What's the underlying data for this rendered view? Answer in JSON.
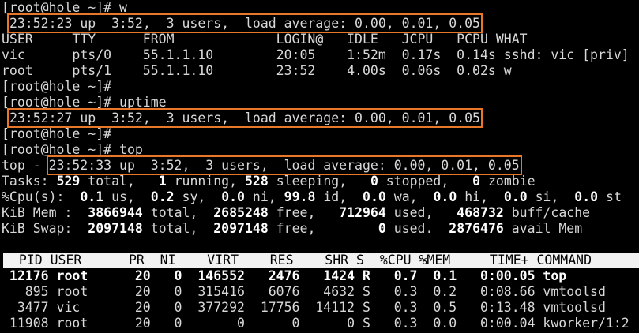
{
  "terminal": {
    "lines": [
      {
        "segments": [
          {
            "text": "[root@hole ~]# w"
          }
        ]
      },
      {
        "segments": [
          {
            "text": " "
          },
          {
            "text": "23:52:23 up  3:52,  3 users,  load average: 0.00, 0.01, 0.05",
            "highlight": true
          }
        ]
      },
      {
        "segments": [
          {
            "text": "USER     TTY      FROM             LOGIN@   IDLE   JCPU   PCPU WHAT"
          }
        ]
      },
      {
        "segments": [
          {
            "text": "vic      pts/0    55.1.1.10        20:05    1:52m  0.17s  0.14s sshd: vic [priv]"
          }
        ]
      },
      {
        "segments": [
          {
            "text": "root     pts/1    55.1.1.10        23:52    4.00s  0.06s  0.02s w"
          }
        ]
      },
      {
        "segments": [
          {
            "text": "[root@hole ~]#"
          }
        ]
      },
      {
        "segments": [
          {
            "text": "[root@hole ~]# uptime"
          }
        ]
      },
      {
        "segments": [
          {
            "text": " "
          },
          {
            "text": "23:52:27 up  3:52,  3 users,  load average: 0.00, 0.01, 0.05",
            "highlight": true
          }
        ]
      },
      {
        "segments": [
          {
            "text": "[root@hole ~]#"
          }
        ]
      },
      {
        "segments": [
          {
            "text": "[root@hole ~]# top"
          }
        ]
      },
      {
        "segments": [
          {
            "text": "top - "
          },
          {
            "text": "23:52:33 up  3:52,  3 users,  load average: 0.00, 0.01, 0.05",
            "highlight": true
          }
        ]
      },
      {
        "segments": [
          {
            "text": "Tasks: "
          },
          {
            "text": "529",
            "bold": true
          },
          {
            "text": " total,   "
          },
          {
            "text": "1",
            "bold": true
          },
          {
            "text": " running, "
          },
          {
            "text": "528",
            "bold": true
          },
          {
            "text": " sleeping,   "
          },
          {
            "text": "0",
            "bold": true
          },
          {
            "text": " stopped,   "
          },
          {
            "text": "0",
            "bold": true
          },
          {
            "text": " zombie"
          }
        ]
      },
      {
        "segments": [
          {
            "text": "%Cpu(s):  "
          },
          {
            "text": "0.1",
            "bold": true
          },
          {
            "text": " us,  "
          },
          {
            "text": "0.2",
            "bold": true
          },
          {
            "text": " sy,  "
          },
          {
            "text": "0.0",
            "bold": true
          },
          {
            "text": " ni, "
          },
          {
            "text": "99.8",
            "bold": true
          },
          {
            "text": " id,  "
          },
          {
            "text": "0.0",
            "bold": true
          },
          {
            "text": " wa,  "
          },
          {
            "text": "0.0",
            "bold": true
          },
          {
            "text": " hi,  "
          },
          {
            "text": "0.0",
            "bold": true
          },
          {
            "text": " si,  "
          },
          {
            "text": "0.0",
            "bold": true
          },
          {
            "text": " st"
          }
        ]
      },
      {
        "segments": [
          {
            "text": "KiB Mem :  "
          },
          {
            "text": "3866944",
            "bold": true
          },
          {
            "text": " total,  "
          },
          {
            "text": "2685248",
            "bold": true
          },
          {
            "text": " free,   "
          },
          {
            "text": "712964",
            "bold": true
          },
          {
            "text": " used,   "
          },
          {
            "text": "468732",
            "bold": true
          },
          {
            "text": " buff/cache"
          }
        ]
      },
      {
        "segments": [
          {
            "text": "KiB Swap:  "
          },
          {
            "text": "2097148",
            "bold": true
          },
          {
            "text": " total,  "
          },
          {
            "text": "2097148",
            "bold": true
          },
          {
            "text": " free,        "
          },
          {
            "text": "0",
            "bold": true
          },
          {
            "text": " used.  "
          },
          {
            "text": "2876476",
            "bold": true
          },
          {
            "text": " avail Mem"
          }
        ]
      },
      {
        "segments": []
      },
      {
        "inverse": true,
        "segments": [
          {
            "text": "  PID USER      PR  NI    VIRT    RES    SHR S  %CPU %MEM     TIME+ COMMAND"
          }
        ]
      },
      {
        "segments": [
          {
            "text": " 12176 root      20   0  146552   2476   1424 R   0.7  0.1   0:00.05 top",
            "bold": true
          }
        ]
      },
      {
        "segments": [
          {
            "text": "   895 root      20   0  315416   6076   4632 S   0.3  0.2   0:08.66 vmtoolsd"
          }
        ]
      },
      {
        "segments": [
          {
            "text": "  3477 vic       20   0  377292  17756  14112 S   0.3  0.5   0:13.48 vmtoolsd"
          }
        ]
      },
      {
        "segments": [
          {
            "text": " 11908 root      20   0       0      0      0 S   0.3  0.0   0:00.04 kworker/1:2"
          }
        ]
      }
    ]
  }
}
